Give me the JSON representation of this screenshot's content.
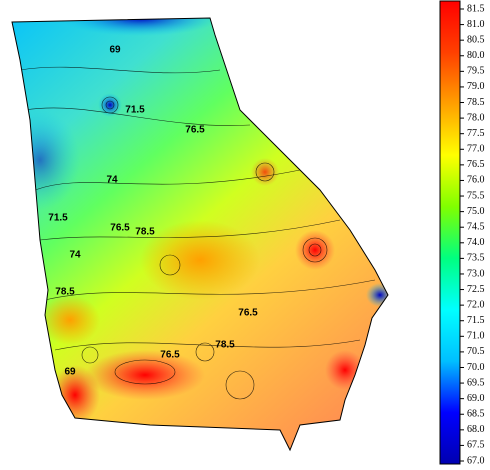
{
  "colorbar": {
    "range": [
      67,
      81.5
    ],
    "colors": [
      "#0000b0",
      "#0000ff",
      "#00bfff",
      "#00ffff",
      "#00ff80",
      "#80ff00",
      "#ffff00",
      "#ffa000",
      "#ff4000",
      "#ff0000"
    ],
    "ticks": [
      {
        "value": 67,
        "label": "67.0"
      },
      {
        "value": 67.5,
        "label": "67.5"
      },
      {
        "value": 68,
        "label": "68.0"
      },
      {
        "value": 68.5,
        "label": "68.5"
      },
      {
        "value": 69,
        "label": "69.0"
      },
      {
        "value": 69.5,
        "label": "69.5"
      },
      {
        "value": 70,
        "label": "70.0"
      },
      {
        "value": 70.5,
        "label": "70.5"
      },
      {
        "value": 71,
        "label": "71.0"
      },
      {
        "value": 71.5,
        "label": "71.5"
      },
      {
        "value": 72,
        "label": "72.0"
      },
      {
        "value": 72.5,
        "label": "72.5"
      },
      {
        "value": 73,
        "label": "73.0"
      },
      {
        "value": 73.5,
        "label": "73.5"
      },
      {
        "value": 74,
        "label": "74.0"
      },
      {
        "value": 74.5,
        "label": "74.5"
      },
      {
        "value": 75,
        "label": "75.0"
      },
      {
        "value": 75.5,
        "label": "75.5"
      },
      {
        "value": 76,
        "label": "76.0"
      },
      {
        "value": 76.5,
        "label": "76.5"
      },
      {
        "value": 77,
        "label": "77.0"
      },
      {
        "value": 77.5,
        "label": "77.5"
      },
      {
        "value": 78,
        "label": "78.0"
      },
      {
        "value": 78.5,
        "label": "78.5"
      },
      {
        "value": 79,
        "label": "79.0"
      },
      {
        "value": 79.5,
        "label": "79.5"
      },
      {
        "value": 80,
        "label": "80.0"
      },
      {
        "value": 80.5,
        "label": "80.5"
      },
      {
        "value": 81,
        "label": "81.0"
      },
      {
        "value": 81.5,
        "label": "81.5"
      }
    ]
  },
  "map": {
    "contour_labels": [
      "69",
      "71.5",
      "74",
      "71.5",
      "74",
      "76.5",
      "78.5",
      "76.5",
      "78.5",
      "76.5",
      "76.5",
      "78.5",
      "69"
    ]
  }
}
